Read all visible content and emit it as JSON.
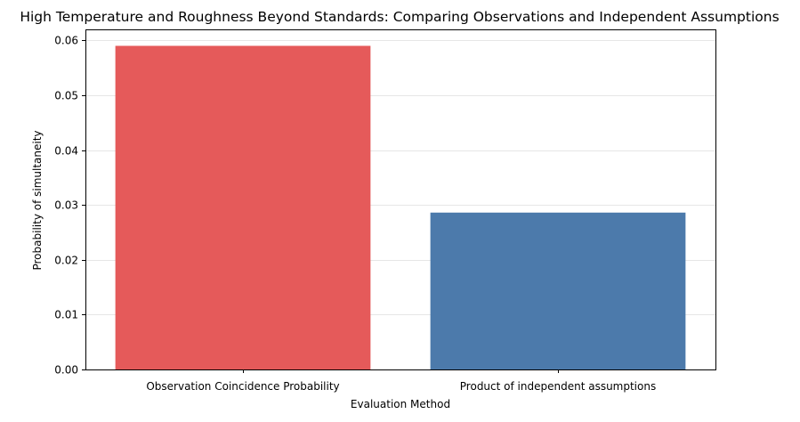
{
  "chart_data": {
    "type": "bar",
    "title": "High Temperature and Roughness Beyond Standards: Comparing Observations and Independent Assumptions",
    "xlabel": "Evaluation Method",
    "ylabel": "Probability of simultaneity",
    "categories": [
      "Observation Coincidence Probability",
      "Product of independent assumptions"
    ],
    "values": [
      0.059,
      0.0286
    ],
    "colors": [
      "#e55a5a",
      "#4c7aab"
    ],
    "ylim": [
      0,
      0.062
    ],
    "yticks": [
      0.0,
      0.01,
      0.02,
      0.03,
      0.04,
      0.05,
      0.06
    ],
    "ytick_labels": [
      "0.00",
      "0.01",
      "0.02",
      "0.03",
      "0.04",
      "0.05",
      "0.06"
    ],
    "grid": "y",
    "legend": "none"
  }
}
